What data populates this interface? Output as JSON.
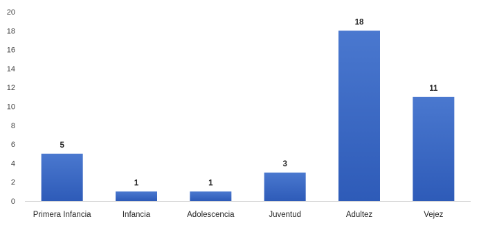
{
  "chart_data": {
    "type": "bar",
    "title": "",
    "xlabel": "",
    "ylabel": "",
    "categories": [
      "Primera Infancia",
      "Infancia",
      "Adolescencia",
      "Juventud",
      "Adultez",
      "Vejez"
    ],
    "values": [
      5,
      1,
      1,
      3,
      18,
      11
    ],
    "data_labels": [
      "5",
      "1",
      "1",
      "3",
      "18",
      "11"
    ],
    "ylim": [
      0,
      20
    ],
    "yticks": [
      "0",
      "2",
      "4",
      "6",
      "8",
      "10",
      "12",
      "14",
      "16",
      "18",
      "20"
    ],
    "grid": false,
    "legend": "none",
    "colors": {
      "bar_top": "#4a78cf",
      "bar_bottom": "#2e5bb8"
    }
  }
}
